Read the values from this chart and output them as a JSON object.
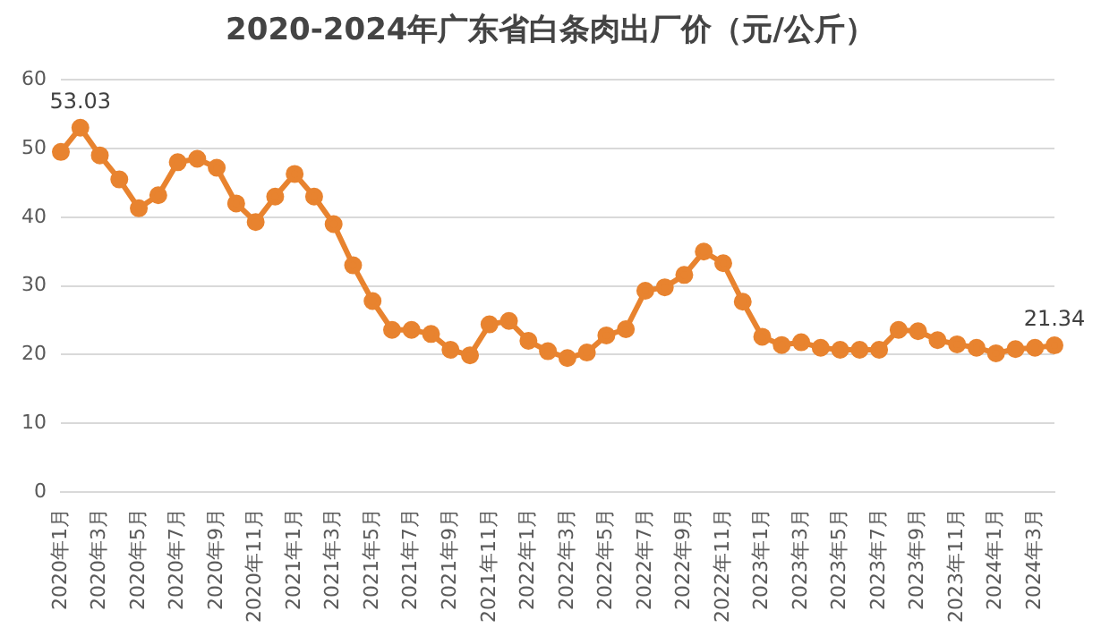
{
  "chart_data": {
    "type": "line",
    "title": "2020-2024年广东省白条肉出厂价（元/公斤）",
    "categories": [
      "2020年1月",
      null,
      "2020年3月",
      null,
      "2020年5月",
      null,
      "2020年7月",
      null,
      "2020年9月",
      null,
      "2020年11月",
      null,
      "2021年1月",
      null,
      "2021年3月",
      null,
      "2021年5月",
      null,
      "2021年7月",
      null,
      "2021年9月",
      null,
      "2021年11月",
      null,
      "2022年1月",
      null,
      "2022年3月",
      null,
      "2022年5月",
      null,
      "2022年7月",
      null,
      "2022年9月",
      null,
      "2022年11月",
      null,
      "2023年1月",
      null,
      "2023年3月",
      null,
      "2023年5月",
      null,
      "2023年7月",
      null,
      "2023年9月",
      null,
      "2023年11月",
      null,
      "2024年1月",
      null,
      "2024年3月",
      null
    ],
    "series": [
      {
        "color": "#e8832f",
        "values": [
          49.5,
          53.03,
          49,
          45.5,
          41.3,
          43.2,
          48,
          48.5,
          47.2,
          42,
          39.3,
          43,
          46.3,
          43,
          39,
          33,
          27.8,
          23.6,
          23.6,
          23,
          20.7,
          19.9,
          24.4,
          24.9,
          22,
          20.5,
          19.5,
          20.3,
          22.8,
          23.7,
          29.3,
          29.8,
          31.6,
          35,
          33.3,
          27.7,
          22.6,
          21.4,
          21.8,
          21,
          20.7,
          20.7,
          20.7,
          23.6,
          23.4,
          22.1,
          21.5,
          21,
          20.2,
          20.8,
          21,
          21.34
        ],
        "value_labels": [
          null,
          "53.03",
          null,
          null,
          null,
          null,
          null,
          null,
          null,
          null,
          null,
          null,
          null,
          null,
          null,
          null,
          null,
          null,
          null,
          null,
          null,
          null,
          null,
          null,
          null,
          null,
          null,
          null,
          null,
          null,
          null,
          null,
          null,
          null,
          null,
          null,
          null,
          null,
          null,
          null,
          null,
          null,
          null,
          null,
          null,
          null,
          null,
          null,
          null,
          null,
          null,
          "21.34"
        ]
      }
    ],
    "ylim": [
      0,
      60
    ],
    "yticks": [
      0,
      10,
      20,
      30,
      40,
      50,
      60
    ],
    "grid": "y",
    "legend": false,
    "marker": "circle",
    "line_style": "solid"
  }
}
